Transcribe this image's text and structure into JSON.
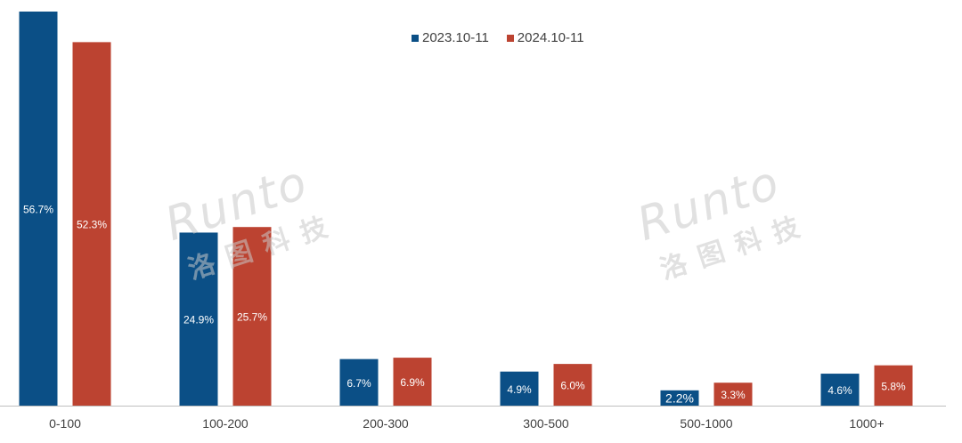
{
  "chart_data": {
    "type": "bar",
    "categories": [
      "0-100",
      "100-200",
      "200-300",
      "300-500",
      "500-1000",
      "1000+"
    ],
    "series": [
      {
        "name": "2023.10-11",
        "color": "#0b4f86",
        "values": [
          56.7,
          24.9,
          6.7,
          4.9,
          2.2,
          4.6
        ],
        "labels": [
          "56.7%",
          "24.9%",
          "6.7%",
          "4.9%",
          "2.2%",
          "4.6%"
        ]
      },
      {
        "name": "2024.10-11",
        "color": "#bc4331",
        "values": [
          52.3,
          25.7,
          6.9,
          6.0,
          3.3,
          5.8
        ],
        "labels": [
          "52.3%",
          "25.7%",
          "6.9%",
          "6.0%",
          "3.3%",
          "5.8%"
        ]
      }
    ],
    "title": "",
    "xlabel": "",
    "ylabel": "",
    "legend_position": "top",
    "grid": false
  },
  "watermark": {
    "logo": "Runto",
    "chinese": "洛图科技"
  }
}
